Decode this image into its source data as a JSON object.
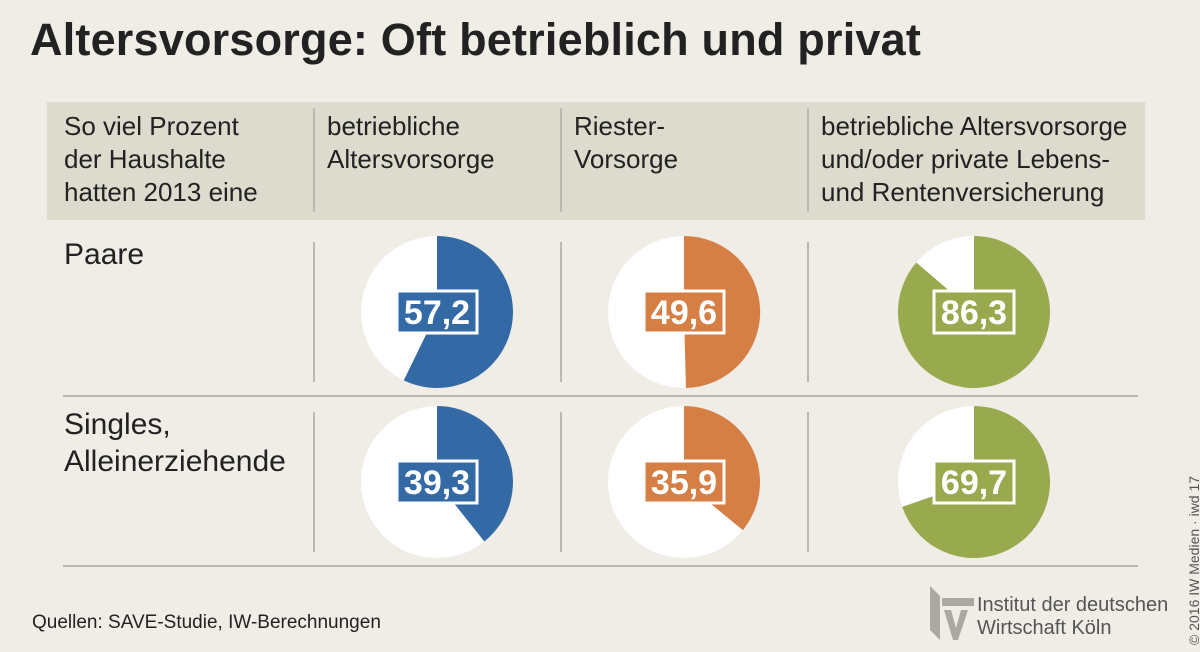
{
  "title": "Altersvorsorge: Oft betrieblich und privat",
  "header": {
    "intro": [
      "So viel Prozent",
      "der Haushalte",
      "hatten 2013 eine"
    ],
    "col1": [
      "betriebliche",
      "Altersvorsorge"
    ],
    "col2": [
      "Riester-",
      "Vorsorge"
    ],
    "col3": [
      "betriebliche Altersvorsorge",
      "und/oder private Lebens-",
      "und Rentenversicherung"
    ]
  },
  "rows": {
    "paare": [
      "Paare"
    ],
    "singles": [
      "Singles,",
      "Alleinerziehende"
    ]
  },
  "chart_data": {
    "type": "pie",
    "title": "Altersvorsorge: Oft betrieblich und privat",
    "unit": "Prozent der Haushalte, 2013",
    "categories": [
      "betriebliche Altersvorsorge",
      "Riester-Vorsorge",
      "betriebliche Altersvorsorge und/oder private Lebens- und Rentenversicherung"
    ],
    "series": [
      {
        "name": "Paare",
        "values": [
          57.2,
          49.6,
          86.3
        ],
        "labels": [
          "57,2",
          "49,6",
          "86,3"
        ]
      },
      {
        "name": "Singles, Alleinerziehende",
        "values": [
          39.3,
          35.9,
          69.7
        ],
        "labels": [
          "39,3",
          "35,9",
          "69,7"
        ]
      }
    ],
    "colors": [
      "#336aa6",
      "#d57f45",
      "#98aa4d"
    ]
  },
  "footer": {
    "source": "Quellen: SAVE-Studie, IW-Berechnungen",
    "logo_text": [
      "Institut der deutschen",
      "Wirtschaft Köln"
    ],
    "copyright": "© 2016 IW Medien · iwd 17"
  }
}
